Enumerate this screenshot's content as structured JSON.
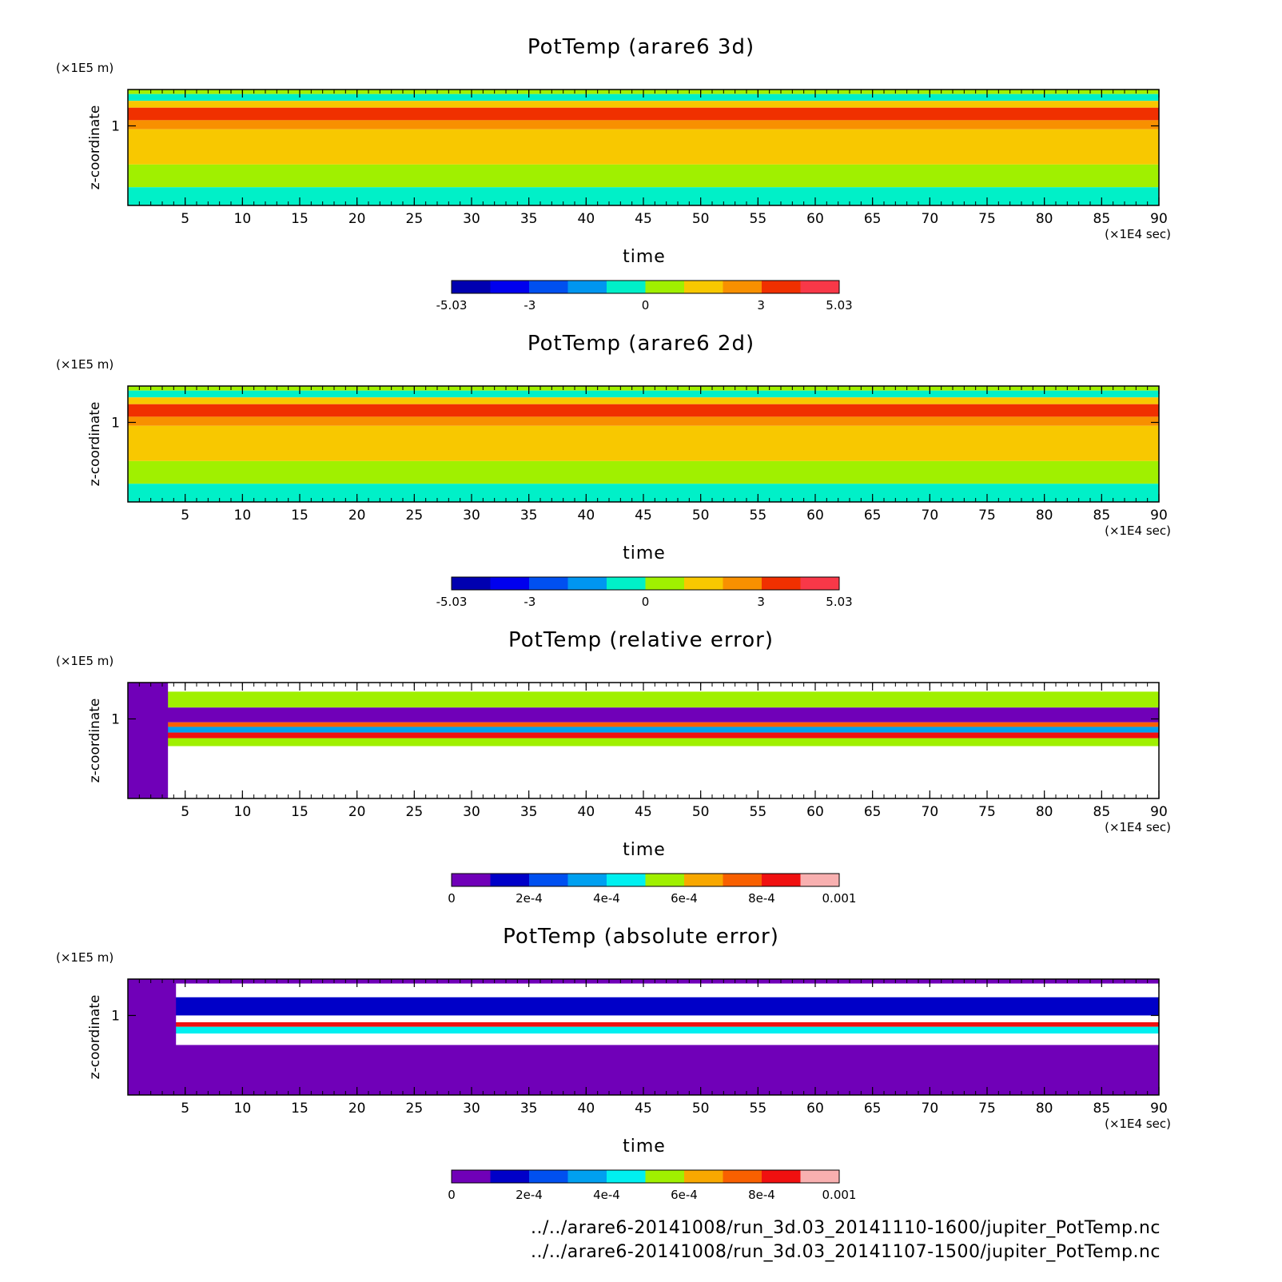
{
  "figure": {
    "footer_lines": [
      "../../arare6-20141008/run_3d.03_20141110-1600/jupiter_PotTemp.nc",
      "../../arare6-20141008/run_3d.03_20141107-1500/jupiter_PotTemp.nc"
    ]
  },
  "chart_data": [
    {
      "type": "heatmap",
      "title": "PotTemp (arare6 3d)",
      "xlabel": "time",
      "ylabel": "z-coordinate",
      "x_unit": "(×1E4 sec)",
      "y_unit": "(×1E5 m)",
      "xlim": [
        0,
        90
      ],
      "xticks": [
        5,
        10,
        15,
        20,
        25,
        30,
        35,
        40,
        45,
        50,
        55,
        60,
        65,
        70,
        75,
        80,
        85,
        90
      ],
      "yticks": [
        1
      ],
      "bands": [
        {
          "z_from": 1.32,
          "z_to": 1.28,
          "level": 0.5
        },
        {
          "z_from": 1.28,
          "z_to": 1.22,
          "level": -0.5
        },
        {
          "z_from": 1.22,
          "z_to": 1.16,
          "level": 1.5
        },
        {
          "z_from": 1.16,
          "z_to": 1.05,
          "level": 3.5
        },
        {
          "z_from": 1.05,
          "z_to": 0.97,
          "level": 2.5
        },
        {
          "z_from": 0.97,
          "z_to": 0.66,
          "level": 1.5
        },
        {
          "z_from": 0.66,
          "z_to": 0.46,
          "level": 0.5
        },
        {
          "z_from": 0.46,
          "z_to": 0.3,
          "level": -0.5
        }
      ],
      "colorbar": {
        "min": -5.03,
        "max": 5.03,
        "tick_labels": [
          "-5.03",
          "-3",
          "0",
          "3",
          "5.03"
        ],
        "tick_values": [
          -5.03,
          -3,
          0,
          3,
          5.03
        ],
        "colors": [
          "#0000b0",
          "#0000ee",
          "#0050f0",
          "#0096f0",
          "#00f0c8",
          "#a0f000",
          "#f8c800",
          "#f89000",
          "#f03000",
          "#f83848"
        ]
      }
    },
    {
      "type": "heatmap",
      "title": "PotTemp (arare6 2d)",
      "xlabel": "time",
      "ylabel": "z-coordinate",
      "x_unit": "(×1E4 sec)",
      "y_unit": "(×1E5 m)",
      "xlim": [
        0,
        90
      ],
      "xticks": [
        5,
        10,
        15,
        20,
        25,
        30,
        35,
        40,
        45,
        50,
        55,
        60,
        65,
        70,
        75,
        80,
        85,
        90
      ],
      "yticks": [
        1
      ],
      "bands": [
        {
          "z_from": 1.32,
          "z_to": 1.28,
          "level": 0.5
        },
        {
          "z_from": 1.28,
          "z_to": 1.22,
          "level": -0.5
        },
        {
          "z_from": 1.22,
          "z_to": 1.16,
          "level": 1.5
        },
        {
          "z_from": 1.16,
          "z_to": 1.05,
          "level": 3.5
        },
        {
          "z_from": 1.05,
          "z_to": 0.97,
          "level": 2.5
        },
        {
          "z_from": 0.97,
          "z_to": 0.66,
          "level": 1.5
        },
        {
          "z_from": 0.66,
          "z_to": 0.46,
          "level": 0.5
        },
        {
          "z_from": 0.46,
          "z_to": 0.3,
          "level": -0.5
        }
      ],
      "colorbar": {
        "min": -5.03,
        "max": 5.03,
        "tick_labels": [
          "-5.03",
          "-3",
          "0",
          "3",
          "5.03"
        ],
        "tick_values": [
          -5.03,
          -3,
          0,
          3,
          5.03
        ],
        "colors": [
          "#0000b0",
          "#0000ee",
          "#0050f0",
          "#0096f0",
          "#00f0c8",
          "#a0f000",
          "#f8c800",
          "#f89000",
          "#f03000",
          "#f83848"
        ]
      }
    },
    {
      "type": "heatmap",
      "title": "PotTemp (relative error)",
      "xlabel": "time",
      "ylabel": "z-coordinate",
      "x_unit": "(×1E4 sec)",
      "y_unit": "(×1E5 m)",
      "xlim": [
        0,
        90
      ],
      "xticks": [
        5,
        10,
        15,
        20,
        25,
        30,
        35,
        40,
        45,
        50,
        55,
        60,
        65,
        70,
        75,
        80,
        85,
        90
      ],
      "yticks": [
        1
      ],
      "bands": [
        {
          "z_from": 1.32,
          "z_to": 1.24,
          "level": 0.0011
        },
        {
          "z_from": 1.24,
          "z_to": 1.1,
          "level": 0.0005
        },
        {
          "z_from": 1.1,
          "z_to": 0.97,
          "level": 5e-05
        },
        {
          "z_from": 0.97,
          "z_to": 0.93,
          "level": 0.0007
        },
        {
          "z_from": 0.93,
          "z_to": 0.88,
          "level": 0.0003
        },
        {
          "z_from": 0.88,
          "z_to": 0.83,
          "level": 0.0008
        },
        {
          "z_from": 0.83,
          "z_to": 0.76,
          "level": 0.0005
        },
        {
          "z_from": 0.76,
          "z_to": 0.3,
          "level": 0.0011
        }
      ],
      "low_region_until": 3.5,
      "colorbar": {
        "min": 0,
        "max": 0.001,
        "tick_labels": [
          "0",
          "2e-4",
          "4e-4",
          "6e-4",
          "8e-4",
          "0.001"
        ],
        "tick_values": [
          0,
          0.0002,
          0.0004,
          0.0006,
          0.0008,
          0.001
        ],
        "colors": [
          "#7000b8",
          "#0000c8",
          "#0050f0",
          "#00a0f0",
          "#00f0f0",
          "#a0f000",
          "#f8a800",
          "#f86000",
          "#f01010",
          "#f8b0b0"
        ]
      }
    },
    {
      "type": "heatmap",
      "title": "PotTemp (absolute error)",
      "xlabel": "time",
      "ylabel": "z-coordinate",
      "x_unit": "(×1E4 sec)",
      "y_unit": "(×1E5 m)",
      "xlim": [
        0,
        90
      ],
      "xticks": [
        5,
        10,
        15,
        20,
        25,
        30,
        35,
        40,
        45,
        50,
        55,
        60,
        65,
        70,
        75,
        80,
        85,
        90
      ],
      "yticks": [
        1
      ],
      "bands": [
        {
          "z_from": 1.32,
          "z_to": 1.28,
          "level": 5e-05
        },
        {
          "z_from": 1.28,
          "z_to": 1.16,
          "level": 0.0011
        },
        {
          "z_from": 1.16,
          "z_to": 1.0,
          "level": 0.00015
        },
        {
          "z_from": 1.0,
          "z_to": 0.94,
          "level": 0.0011
        },
        {
          "z_from": 0.94,
          "z_to": 0.9,
          "level": 0.0008
        },
        {
          "z_from": 0.9,
          "z_to": 0.84,
          "level": 0.0004
        },
        {
          "z_from": 0.84,
          "z_to": 0.74,
          "level": 0.0011
        },
        {
          "z_from": 0.74,
          "z_to": 0.3,
          "level": 5e-05
        }
      ],
      "low_region_until": 4.2,
      "colorbar": {
        "min": 0,
        "max": 0.001,
        "tick_labels": [
          "0",
          "2e-4",
          "4e-4",
          "6e-4",
          "8e-4",
          "0.001"
        ],
        "tick_values": [
          0,
          0.0002,
          0.0004,
          0.0006,
          0.0008,
          0.001
        ],
        "colors": [
          "#7000b8",
          "#0000c8",
          "#0050f0",
          "#00a0f0",
          "#00f0f0",
          "#a0f000",
          "#f8a800",
          "#f86000",
          "#f01010",
          "#f8b0b0"
        ]
      }
    }
  ]
}
